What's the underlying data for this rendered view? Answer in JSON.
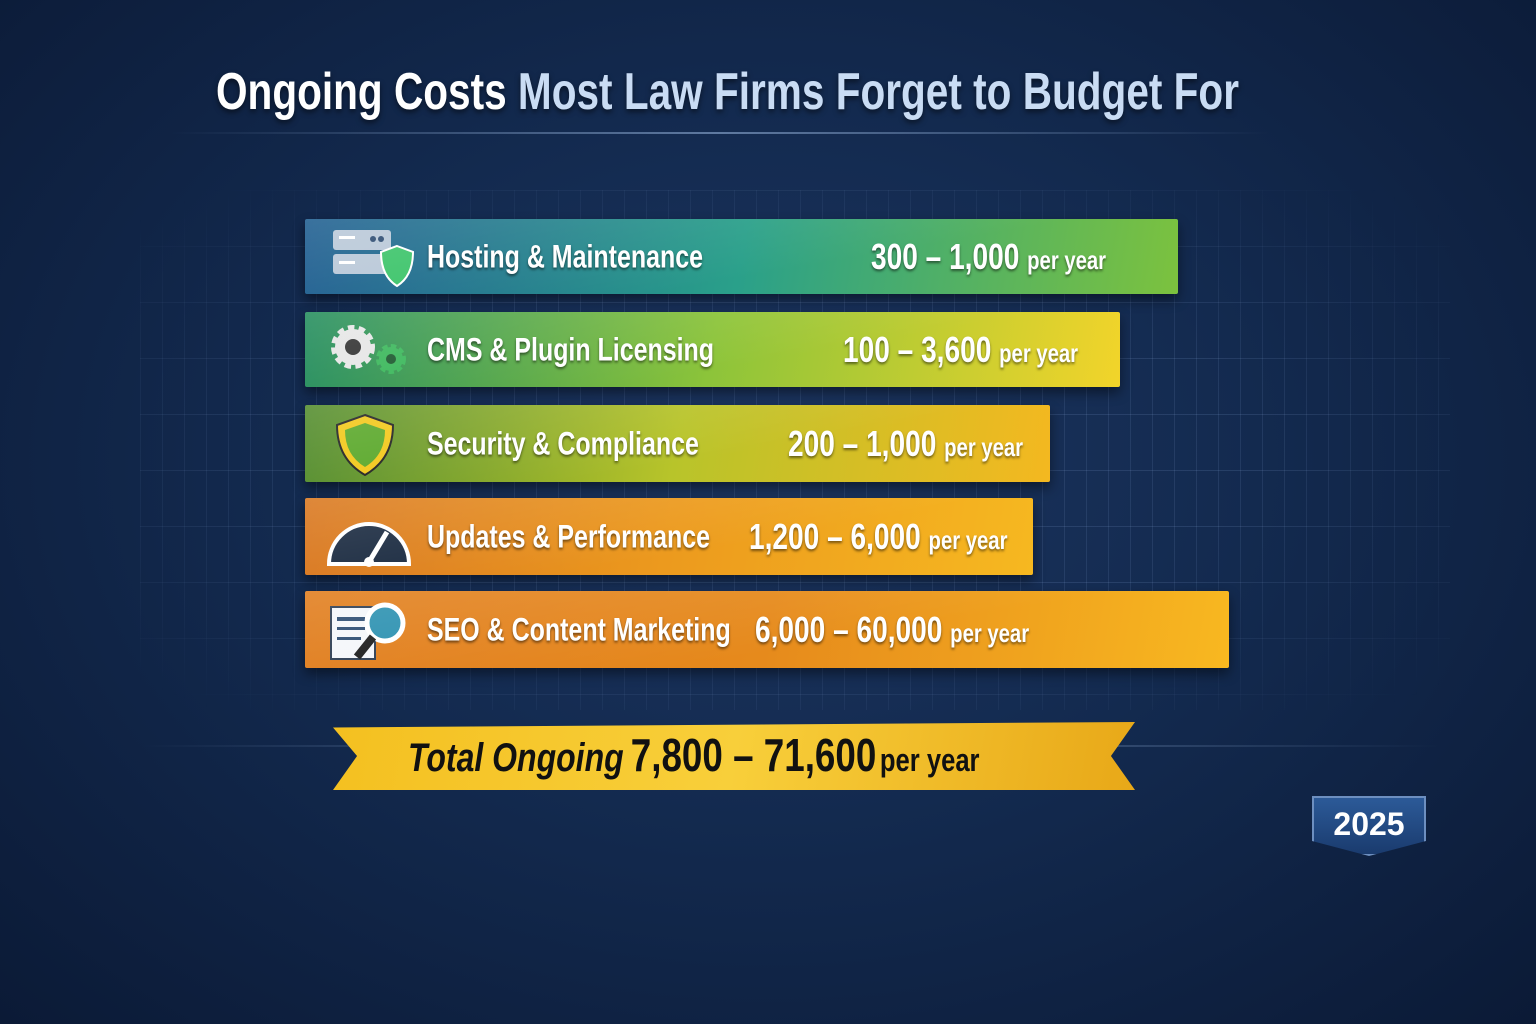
{
  "title": {
    "part1": "Ongoing Costs",
    "part2": "Most Law Firms Forget to Budget For"
  },
  "chart_data": {
    "type": "bar",
    "title": "Ongoing Costs Most Law Firms Forget to Budget For",
    "unit": "per year",
    "categories": [
      "Hosting & Maintenance",
      "CMS & Plugin Licensing",
      "Security & Compliance",
      "Updates & Performance",
      "SEO & Content Marketing"
    ],
    "series": [
      {
        "name": "",
        "values": [
          [
            300,
            1000
          ],
          [
            100,
            3600
          ],
          [
            200,
            1000
          ],
          [
            1200,
            6000
          ],
          [
            6000,
            60000
          ]
        ]
      }
    ],
    "value_labels": [
      "300 – 1,000",
      "100 – 3,600",
      "200 – 1,000",
      "1,200 – 6,000",
      "6,000 – 60,000"
    ],
    "icons": [
      "server-shield-icon",
      "gears-icon",
      "shield-icon",
      "speedometer-icon",
      "document-search-icon"
    ],
    "colors": [
      [
        "#1a5a8e",
        "#2aa08a",
        "#7cc23e"
      ],
      [
        "#1e8a5a",
        "#8cc43a",
        "#f2d42a"
      ],
      [
        "#4f8a2a",
        "#b8c42a",
        "#f4b820"
      ],
      [
        "#d8741a",
        "#ec9a1e",
        "#f6b820"
      ],
      [
        "#e07a18",
        "#e68a1c",
        "#f8b820"
      ]
    ],
    "total": {
      "label": "Total Ongoing",
      "value": "7,800 – 71,600",
      "unit": "per year",
      "range": [
        7800,
        71600
      ]
    },
    "grid": true
  },
  "badge": "2025"
}
